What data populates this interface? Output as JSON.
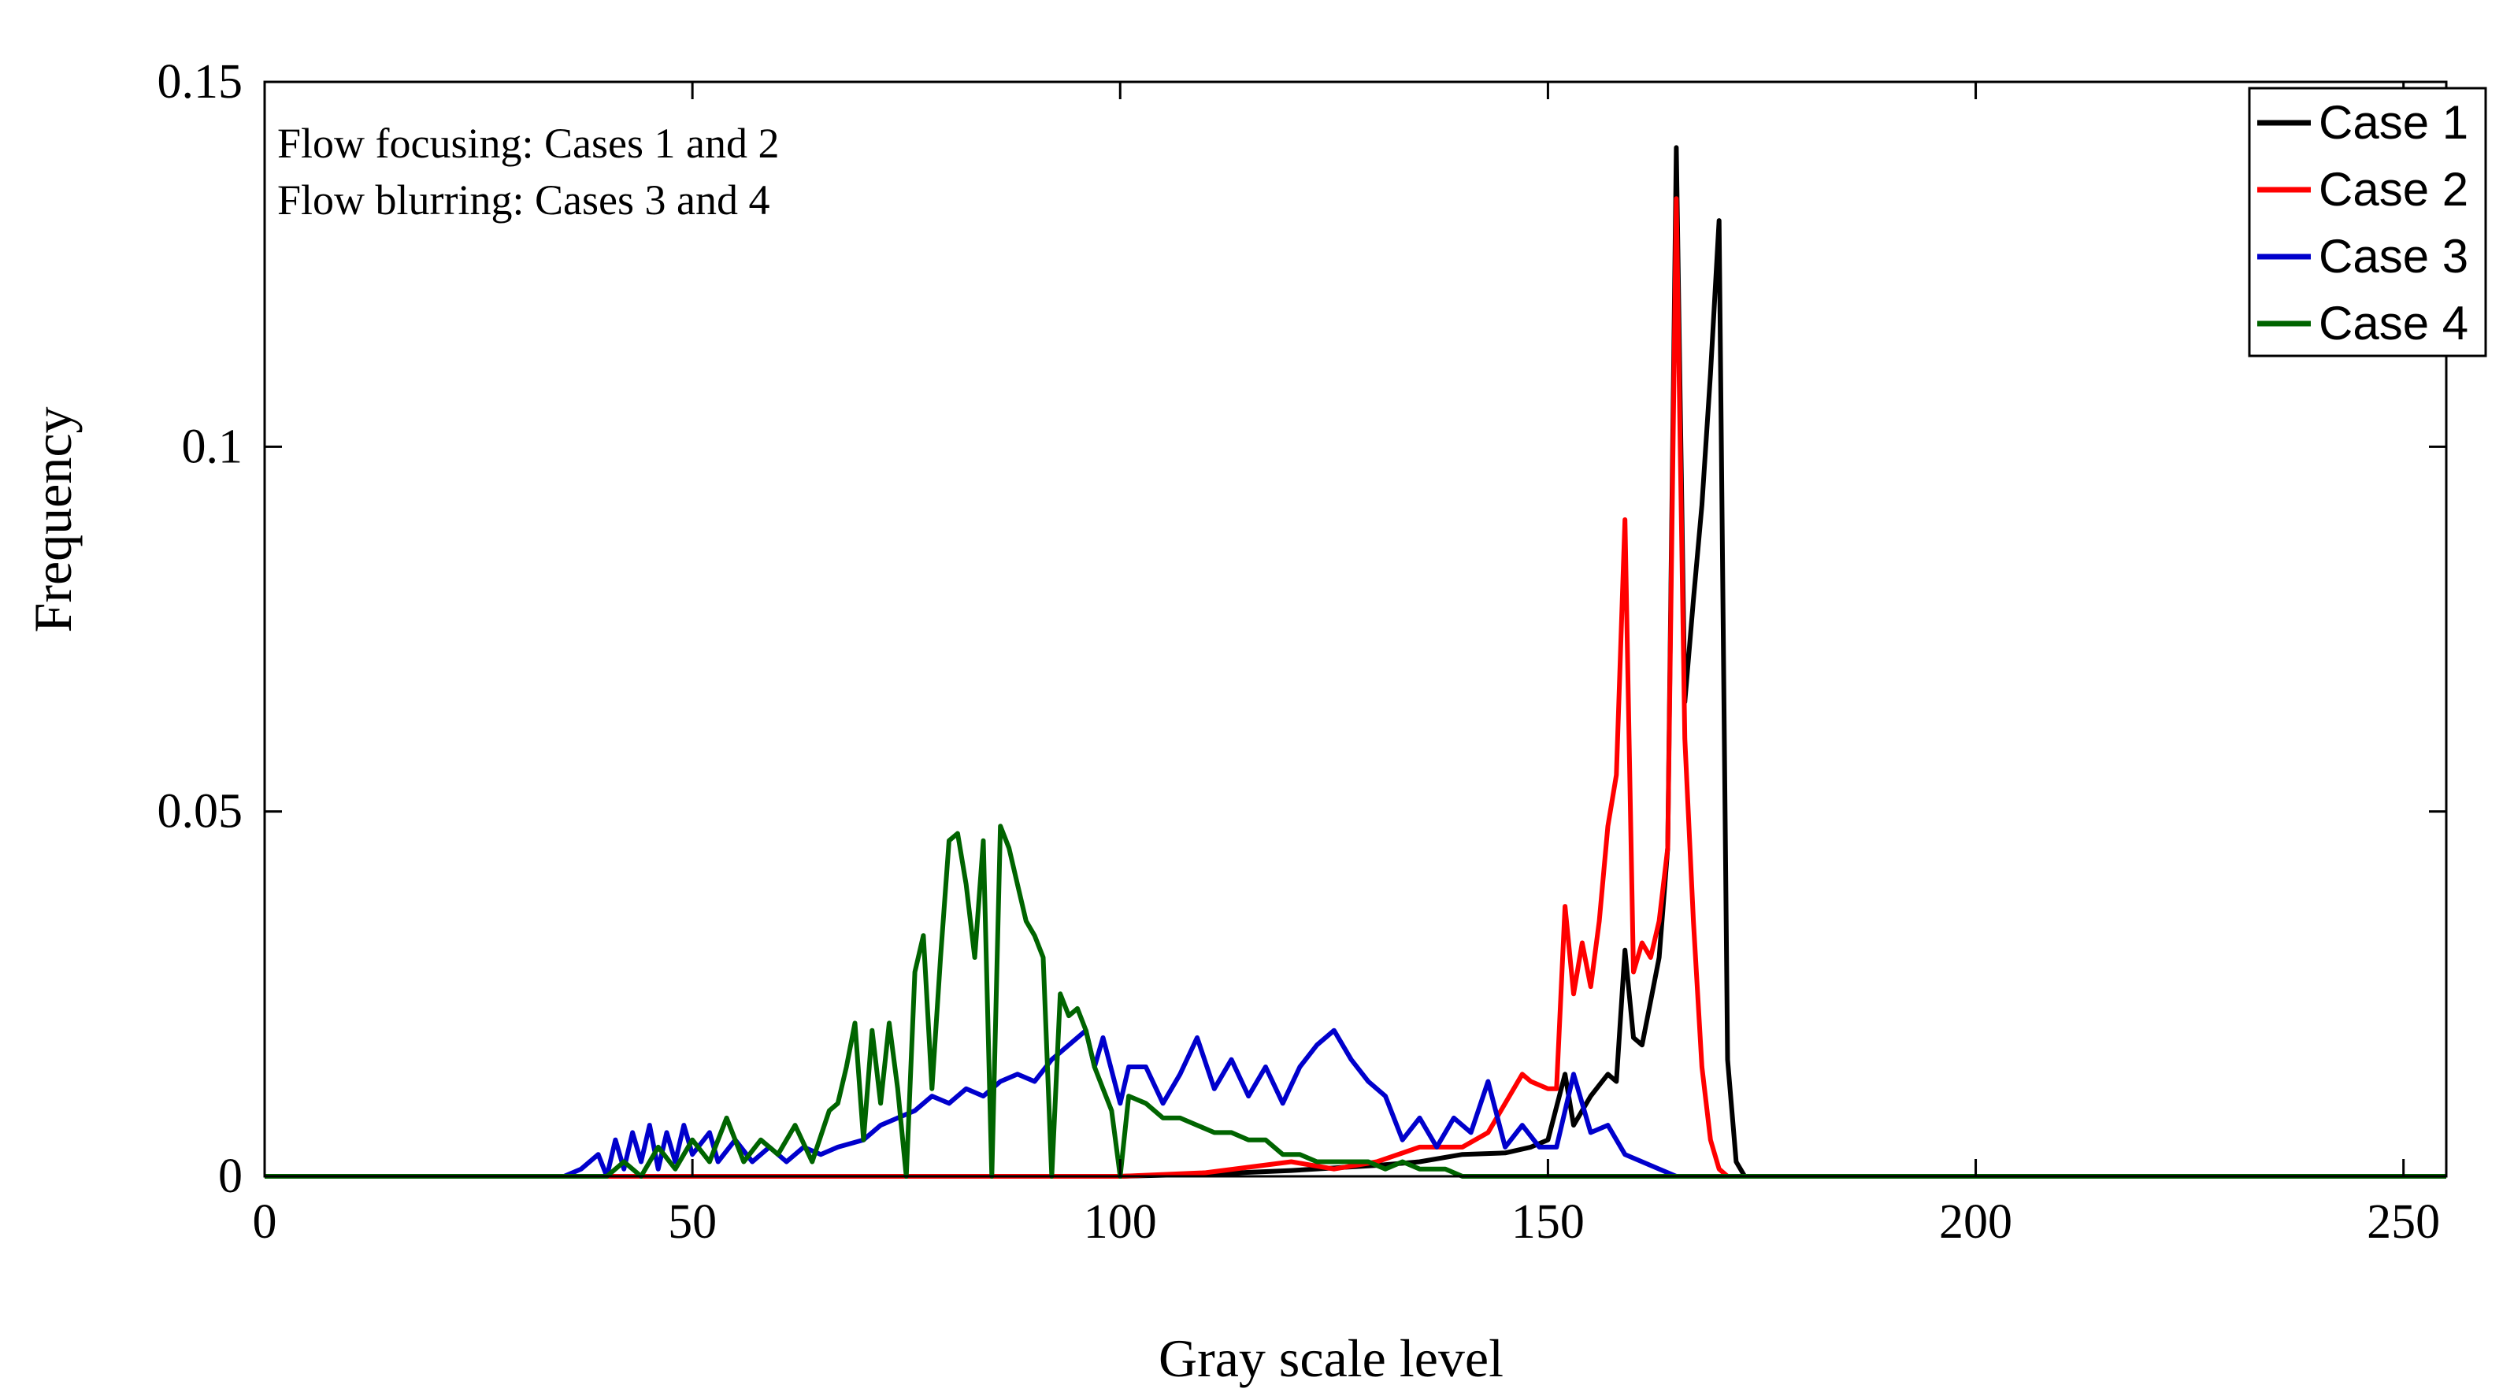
{
  "chart_data": {
    "type": "line",
    "title": "",
    "xlabel": "Gray scale level",
    "ylabel": "Frequency",
    "xlim": [
      0,
      255
    ],
    "ylim": [
      0,
      0.15
    ],
    "xticks": [
      0,
      50,
      100,
      150,
      200,
      250
    ],
    "yticks": [
      0,
      0.05,
      0.1,
      0.15
    ],
    "xtick_labels": [
      "0",
      "50",
      "100",
      "150",
      "200",
      "250"
    ],
    "ytick_labels": [
      "0",
      "0.05",
      "0.1",
      "0.15"
    ],
    "grid": false,
    "legend_position": "top-right",
    "annotations": [
      "Flow focusing: Cases 1 and 2",
      "Flow blurring: Cases 3 and 4"
    ],
    "series": [
      {
        "name": "Case 1",
        "color": "#000000",
        "points": [
          [
            0,
            0
          ],
          [
            100,
            0
          ],
          [
            110,
            0.0003
          ],
          [
            120,
            0.0008
          ],
          [
            130,
            0.0015
          ],
          [
            135,
            0.002
          ],
          [
            140,
            0.003
          ],
          [
            145,
            0.0032
          ],
          [
            148,
            0.004
          ],
          [
            150,
            0.005
          ],
          [
            152,
            0.014
          ],
          [
            153,
            0.007
          ],
          [
            155,
            0.011
          ],
          [
            157,
            0.014
          ],
          [
            158,
            0.013
          ],
          [
            159,
            0.031
          ],
          [
            160,
            0.019
          ],
          [
            161,
            0.018
          ],
          [
            162,
            0.024
          ],
          [
            163,
            0.03
          ],
          [
            164,
            0.045
          ],
          [
            165,
            0.141
          ],
          [
            166,
            0.065
          ],
          [
            167,
            0.079
          ],
          [
            168,
            0.092
          ],
          [
            169,
            0.11
          ],
          [
            170,
            0.131
          ],
          [
            171,
            0.016
          ],
          [
            172,
            0.002
          ],
          [
            173,
            0
          ],
          [
            255,
            0
          ]
        ]
      },
      {
        "name": "Case 2",
        "color": "#ff0000",
        "points": [
          [
            0,
            0
          ],
          [
            100,
            0
          ],
          [
            110,
            0.0005
          ],
          [
            120,
            0.002
          ],
          [
            125,
            0.001
          ],
          [
            130,
            0.002
          ],
          [
            135,
            0.004
          ],
          [
            140,
            0.004
          ],
          [
            143,
            0.006
          ],
          [
            145,
            0.01
          ],
          [
            147,
            0.014
          ],
          [
            148,
            0.013
          ],
          [
            150,
            0.012
          ],
          [
            151,
            0.012
          ],
          [
            152,
            0.037
          ],
          [
            153,
            0.025
          ],
          [
            154,
            0.032
          ],
          [
            155,
            0.026
          ],
          [
            156,
            0.035
          ],
          [
            157,
            0.048
          ],
          [
            158,
            0.055
          ],
          [
            159,
            0.09
          ],
          [
            160,
            0.028
          ],
          [
            161,
            0.032
          ],
          [
            162,
            0.03
          ],
          [
            163,
            0.035
          ],
          [
            164,
            0.045
          ],
          [
            165,
            0.134
          ],
          [
            166,
            0.06
          ],
          [
            167,
            0.035
          ],
          [
            168,
            0.015
          ],
          [
            169,
            0.005
          ],
          [
            170,
            0.001
          ],
          [
            171,
            0
          ],
          [
            255,
            0
          ]
        ]
      },
      {
        "name": "Case 3",
        "color": "#0000cc",
        "points": [
          [
            0,
            0
          ],
          [
            35,
            0
          ],
          [
            37,
            0.001
          ],
          [
            39,
            0.003
          ],
          [
            40,
            0
          ],
          [
            41,
            0.005
          ],
          [
            42,
            0.001
          ],
          [
            43,
            0.006
          ],
          [
            44,
            0.002
          ],
          [
            45,
            0.007
          ],
          [
            46,
            0.001
          ],
          [
            47,
            0.006
          ],
          [
            48,
            0.002
          ],
          [
            49,
            0.007
          ],
          [
            50,
            0.003
          ],
          [
            52,
            0.006
          ],
          [
            53,
            0.002
          ],
          [
            55,
            0.005
          ],
          [
            57,
            0.002
          ],
          [
            59,
            0.004
          ],
          [
            61,
            0.002
          ],
          [
            63,
            0.004
          ],
          [
            65,
            0.003
          ],
          [
            67,
            0.004
          ],
          [
            70,
            0.005
          ],
          [
            72,
            0.007
          ],
          [
            74,
            0.008
          ],
          [
            76,
            0.009
          ],
          [
            78,
            0.011
          ],
          [
            80,
            0.01
          ],
          [
            82,
            0.012
          ],
          [
            84,
            0.011
          ],
          [
            86,
            0.013
          ],
          [
            88,
            0.014
          ],
          [
            90,
            0.013
          ],
          [
            92,
            0.016
          ],
          [
            94,
            0.018
          ],
          [
            96,
            0.02
          ],
          [
            97,
            0.015
          ],
          [
            98,
            0.019
          ],
          [
            100,
            0.01
          ],
          [
            101,
            0.015
          ],
          [
            103,
            0.015
          ],
          [
            105,
            0.01
          ],
          [
            107,
            0.014
          ],
          [
            109,
            0.019
          ],
          [
            111,
            0.012
          ],
          [
            113,
            0.016
          ],
          [
            115,
            0.011
          ],
          [
            117,
            0.015
          ],
          [
            119,
            0.01
          ],
          [
            121,
            0.015
          ],
          [
            123,
            0.018
          ],
          [
            125,
            0.02
          ],
          [
            127,
            0.016
          ],
          [
            129,
            0.013
          ],
          [
            131,
            0.011
          ],
          [
            133,
            0.005
          ],
          [
            135,
            0.008
          ],
          [
            137,
            0.004
          ],
          [
            139,
            0.008
          ],
          [
            141,
            0.006
          ],
          [
            143,
            0.013
          ],
          [
            145,
            0.004
          ],
          [
            147,
            0.007
          ],
          [
            149,
            0.004
          ],
          [
            151,
            0.004
          ],
          [
            153,
            0.014
          ],
          [
            155,
            0.006
          ],
          [
            157,
            0.007
          ],
          [
            159,
            0.003
          ],
          [
            161,
            0.002
          ],
          [
            163,
            0.001
          ],
          [
            165,
            0
          ],
          [
            255,
            0
          ]
        ]
      },
      {
        "name": "Case 4",
        "color": "#006400",
        "points": [
          [
            0,
            0
          ],
          [
            40,
            0
          ],
          [
            42,
            0.002
          ],
          [
            44,
            0
          ],
          [
            46,
            0.004
          ],
          [
            48,
            0.001
          ],
          [
            50,
            0.005
          ],
          [
            52,
            0.002
          ],
          [
            54,
            0.008
          ],
          [
            56,
            0.002
          ],
          [
            58,
            0.005
          ],
          [
            60,
            0.003
          ],
          [
            62,
            0.007
          ],
          [
            64,
            0.002
          ],
          [
            66,
            0.009
          ],
          [
            67,
            0.01
          ],
          [
            68,
            0.015
          ],
          [
            69,
            0.021
          ],
          [
            70,
            0.005
          ],
          [
            71,
            0.02
          ],
          [
            72,
            0.01
          ],
          [
            73,
            0.021
          ],
          [
            74,
            0.012
          ],
          [
            75,
            0.0
          ],
          [
            76,
            0.028
          ],
          [
            77,
            0.033
          ],
          [
            78,
            0.012
          ],
          [
            79,
            0.03
          ],
          [
            80,
            0.046
          ],
          [
            81,
            0.047
          ],
          [
            82,
            0.04
          ],
          [
            83,
            0.03
          ],
          [
            84,
            0.046
          ],
          [
            85,
            0.0
          ],
          [
            86,
            0.048
          ],
          [
            87,
            0.045
          ],
          [
            88,
            0.04
          ],
          [
            89,
            0.035
          ],
          [
            90,
            0.033
          ],
          [
            91,
            0.03
          ],
          [
            92,
            0.0
          ],
          [
            93,
            0.025
          ],
          [
            94,
            0.022
          ],
          [
            95,
            0.023
          ],
          [
            96,
            0.02
          ],
          [
            97,
            0.015
          ],
          [
            98,
            0.012
          ],
          [
            99,
            0.009
          ],
          [
            100,
            0.0
          ],
          [
            101,
            0.011
          ],
          [
            103,
            0.01
          ],
          [
            105,
            0.008
          ],
          [
            107,
            0.008
          ],
          [
            109,
            0.007
          ],
          [
            111,
            0.006
          ],
          [
            113,
            0.006
          ],
          [
            115,
            0.005
          ],
          [
            117,
            0.005
          ],
          [
            119,
            0.003
          ],
          [
            121,
            0.003
          ],
          [
            123,
            0.002
          ],
          [
            125,
            0.002
          ],
          [
            127,
            0.002
          ],
          [
            129,
            0.002
          ],
          [
            131,
            0.001
          ],
          [
            133,
            0.002
          ],
          [
            135,
            0.001
          ],
          [
            138,
            0.001
          ],
          [
            140,
            0
          ],
          [
            255,
            0
          ]
        ]
      }
    ]
  }
}
